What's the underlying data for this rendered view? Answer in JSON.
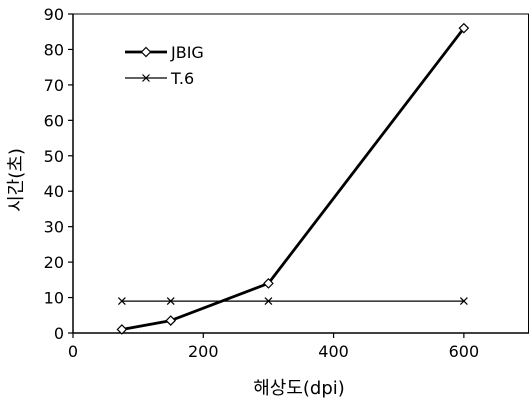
{
  "chart_data": {
    "type": "line",
    "title": "",
    "xlabel": "해상도(dpi)",
    "ylabel": "시간(초)",
    "xlim": [
      0,
      700
    ],
    "ylim": [
      0,
      90
    ],
    "x_ticks": [
      0,
      200,
      400,
      600
    ],
    "y_ticks": [
      0,
      10,
      20,
      30,
      40,
      50,
      60,
      70,
      80,
      90
    ],
    "grid": false,
    "legend_position": "top-left",
    "series": [
      {
        "name": "JBIG",
        "marker": "diamond",
        "line_weight": "thick",
        "color": "#000000",
        "points": [
          {
            "x": 75,
            "y": 1
          },
          {
            "x": 150,
            "y": 3.5
          },
          {
            "x": 300,
            "y": 14
          },
          {
            "x": 600,
            "y": 86
          }
        ]
      },
      {
        "name": "T.6",
        "marker": "x",
        "line_weight": "thin",
        "color": "#000000",
        "points": [
          {
            "x": 75,
            "y": 9
          },
          {
            "x": 150,
            "y": 9
          },
          {
            "x": 300,
            "y": 9
          },
          {
            "x": 600,
            "y": 9
          }
        ]
      }
    ]
  }
}
